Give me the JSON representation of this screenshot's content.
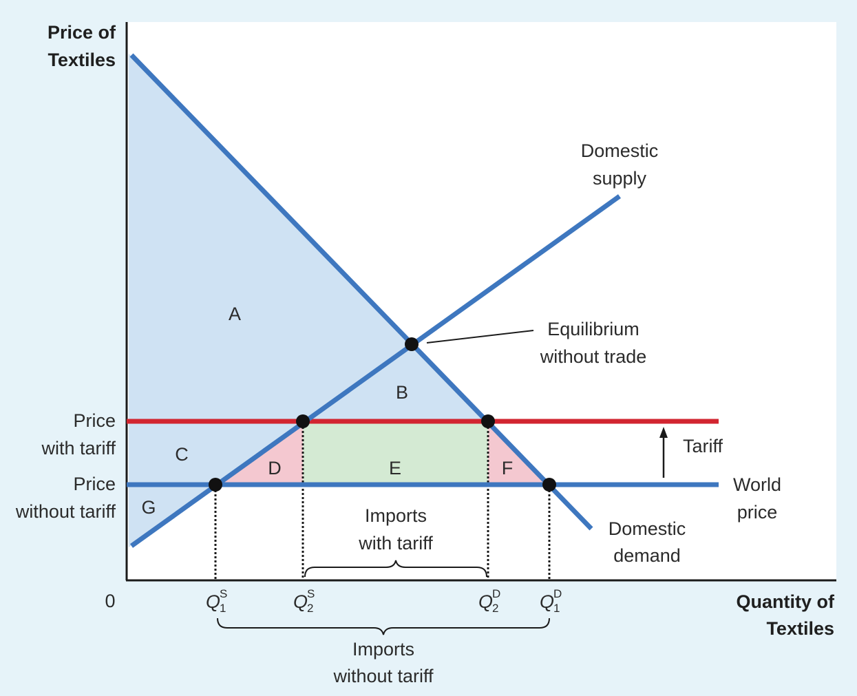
{
  "axes": {
    "y_label_line1": "Price of",
    "y_label_line2": "Textiles",
    "x_label_line1": "Quantity of",
    "x_label_line2": "Textiles",
    "origin": "0"
  },
  "price_labels": {
    "with_tariff_line1": "Price",
    "with_tariff_line2": "with tariff",
    "without_tariff_line1": "Price",
    "without_tariff_line2": "without tariff"
  },
  "curves": {
    "supply_line1": "Domestic",
    "supply_line2": "supply",
    "demand_line1": "Domestic",
    "demand_line2": "demand",
    "world_line1": "World",
    "world_line2": "price",
    "tariff": "Tariff",
    "equilibrium_line1": "Equilibrium",
    "equilibrium_line2": "without trade"
  },
  "areas": {
    "a": "A",
    "b": "B",
    "c": "C",
    "d": "D",
    "e": "E",
    "f": "F",
    "g": "G"
  },
  "quantities": {
    "q": "Q",
    "q1s_sub": "1",
    "q1s_sup": "S",
    "q2s_sub": "2",
    "q2s_sup": "S",
    "q2d_sub": "2",
    "q2d_sup": "D",
    "q1d_sub": "1",
    "q1d_sup": "D"
  },
  "braces": {
    "imports_with_tariff_line1": "Imports",
    "imports_with_tariff_line2": "with tariff",
    "imports_without_tariff_line1": "Imports",
    "imports_without_tariff_line2": "without tariff"
  },
  "colors": {
    "background": "#e6f3f9",
    "plot_background": "#ffffff",
    "curve_blue": "#3e77bf",
    "tariff_red": "#d22530",
    "surplus_blue": "#cfe2f3",
    "deadweight_pink": "#f4c8d0",
    "revenue_green": "#d4ead3"
  }
}
